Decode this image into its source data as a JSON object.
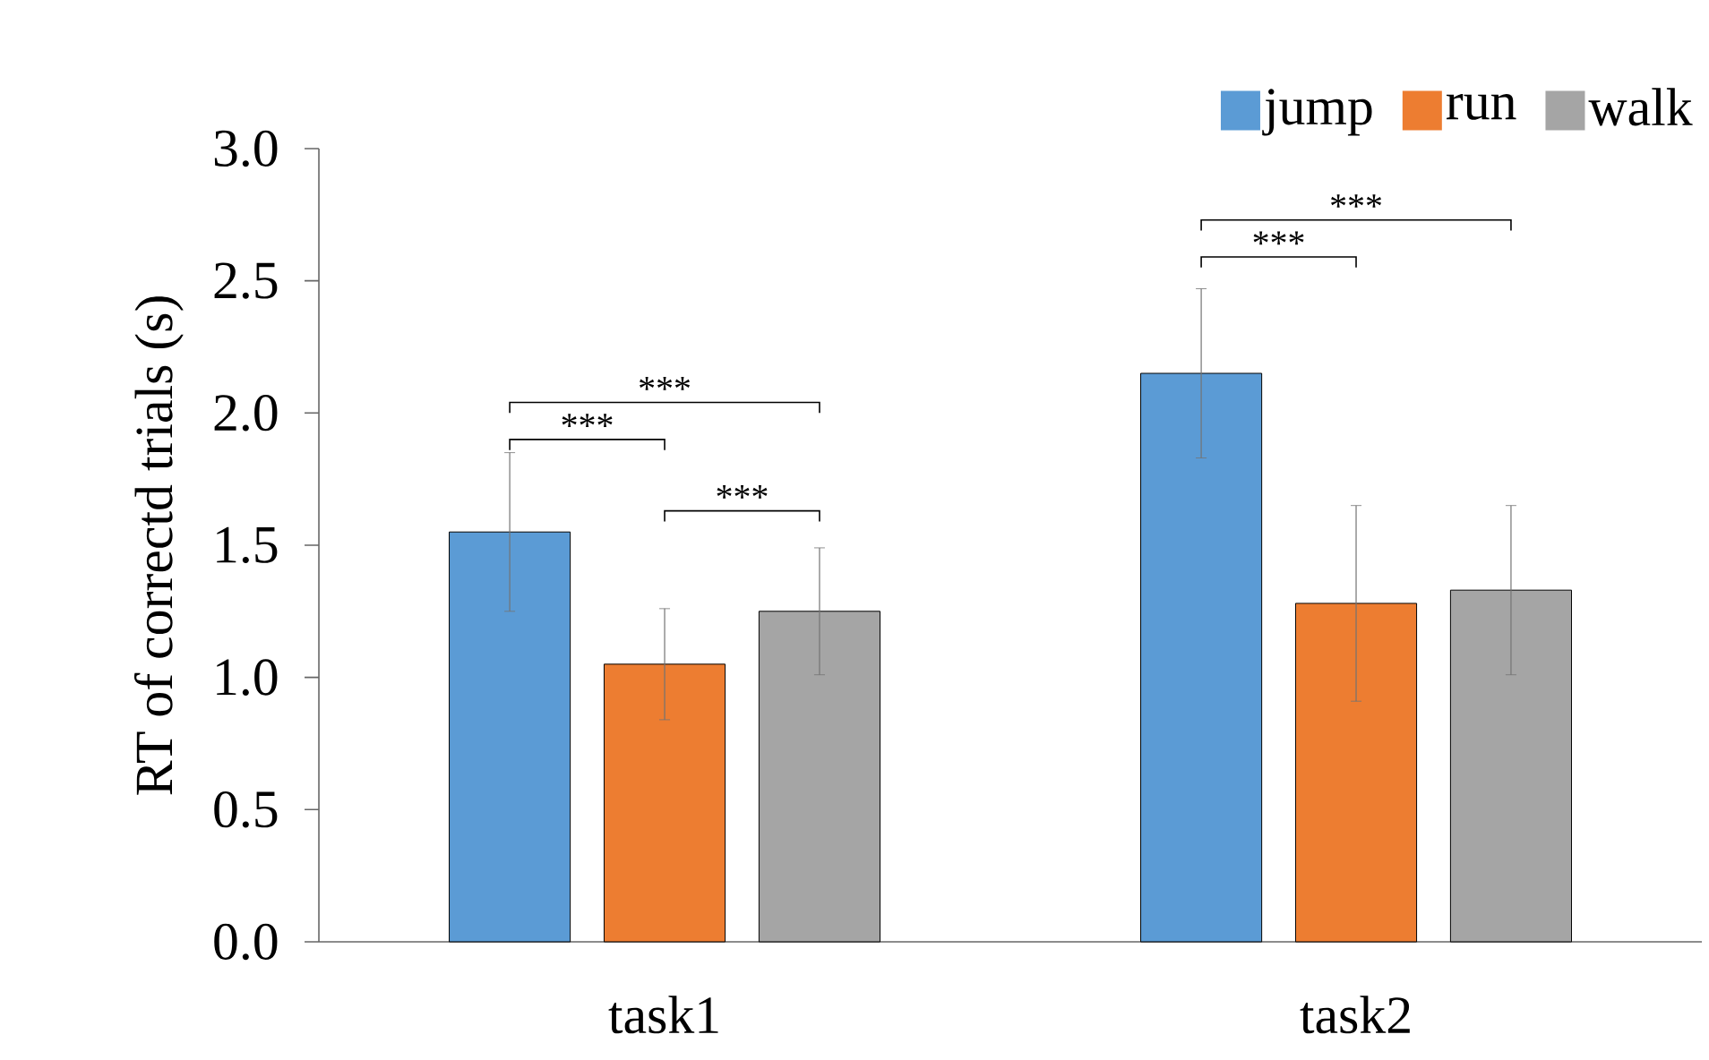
{
  "chart_data": {
    "type": "bar",
    "ylabel": "RT of correctd trials (s)",
    "categories": [
      "task1",
      "task2"
    ],
    "series": [
      {
        "name": "jump",
        "color": "#5b9bd5",
        "values": [
          1.55,
          2.15
        ],
        "errors": [
          0.3,
          0.32
        ]
      },
      {
        "name": "run",
        "color": "#ed7d31",
        "values": [
          1.05,
          1.28
        ],
        "errors": [
          0.21,
          0.37
        ]
      },
      {
        "name": "walk",
        "color": "#a5a5a5",
        "values": [
          1.25,
          1.33
        ],
        "errors": [
          0.24,
          0.32
        ]
      }
    ],
    "ylim": [
      0,
      3.0
    ],
    "yticks": [
      {
        "value": 0,
        "label": "0.0"
      },
      {
        "value": 0.5,
        "label": "0.5"
      },
      {
        "value": 1,
        "label": "1.0"
      },
      {
        "value": 1.5,
        "label": "1.5"
      },
      {
        "value": 2,
        "label": "2.0"
      },
      {
        "value": 2.5,
        "label": "2.5"
      },
      {
        "value": 3,
        "label": "3.0"
      }
    ],
    "grid": false,
    "legend": "top right",
    "annotations": [
      "***",
      "***",
      "***",
      "***",
      "***"
    ]
  }
}
